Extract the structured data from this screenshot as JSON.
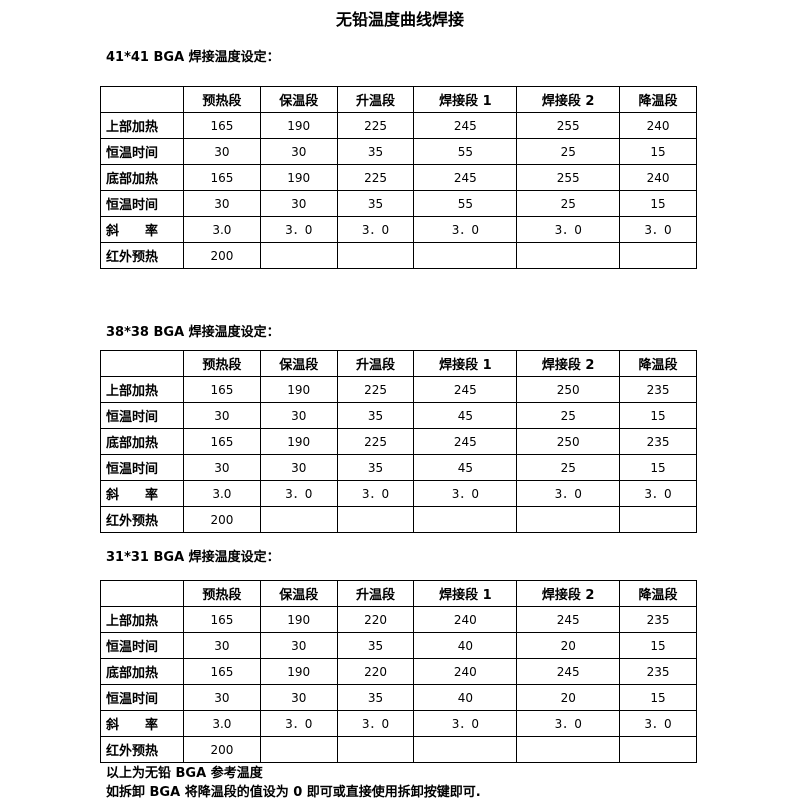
{
  "title": "无铅温度曲线焊接",
  "columns": [
    "",
    "预热段",
    "保温段",
    "升温段",
    "焊接段 1",
    "焊接段 2",
    "降温段"
  ],
  "tables": [
    {
      "heading": "41*41  BGA 焊接温度设定：",
      "rows": [
        {
          "label": "上部加热",
          "values": [
            "165",
            "190",
            "225",
            "245",
            "255",
            "240"
          ]
        },
        {
          "label": "恒温时间",
          "values": [
            "30",
            "30",
            "35",
            "55",
            "25",
            "15"
          ]
        },
        {
          "label": "底部加热",
          "values": [
            "165",
            "190",
            "225",
            "245",
            "255",
            "240"
          ]
        },
        {
          "label": "恒温时间",
          "values": [
            "30",
            "30",
            "35",
            "55",
            "25",
            "15"
          ]
        },
        {
          "label": "斜　　率",
          "values": [
            "3.0",
            "3．0",
            "3．0",
            "3．0",
            "3．0",
            "3．0"
          ]
        },
        {
          "label": "红外预热",
          "values": [
            "200",
            "",
            "",
            "",
            "",
            ""
          ]
        }
      ]
    },
    {
      "heading": "38*38  BGA 焊接温度设定：",
      "rows": [
        {
          "label": "上部加热",
          "values": [
            "165",
            "190",
            "225",
            "245",
            "250",
            "235"
          ]
        },
        {
          "label": "恒温时间",
          "values": [
            "30",
            "30",
            "35",
            "45",
            "25",
            "15"
          ]
        },
        {
          "label": "底部加热",
          "values": [
            "165",
            "190",
            "225",
            "245",
            "250",
            "235"
          ]
        },
        {
          "label": "恒温时间",
          "values": [
            "30",
            "30",
            "35",
            "45",
            "25",
            "15"
          ]
        },
        {
          "label": "斜　　率",
          "values": [
            "3.0",
            "3．0",
            "3．0",
            "3．0",
            "3．0",
            "3．0"
          ]
        },
        {
          "label": "红外预热",
          "values": [
            "200",
            "",
            "",
            "",
            "",
            ""
          ]
        }
      ]
    },
    {
      "heading": "31*31  BGA 焊接温度设定：",
      "rows": [
        {
          "label": "上部加热",
          "values": [
            "165",
            "190",
            "220",
            "240",
            "245",
            "235"
          ]
        },
        {
          "label": "恒温时间",
          "values": [
            "30",
            "30",
            "35",
            "40",
            "20",
            "15"
          ]
        },
        {
          "label": "底部加热",
          "values": [
            "165",
            "190",
            "220",
            "240",
            "245",
            "235"
          ]
        },
        {
          "label": "恒温时间",
          "values": [
            "30",
            "30",
            "35",
            "40",
            "20",
            "15"
          ]
        },
        {
          "label": "斜　　率",
          "values": [
            "3.0",
            "3．0",
            "3．0",
            "3．0",
            "3．0",
            "3．0"
          ]
        },
        {
          "label": "红外预热",
          "values": [
            "200",
            "",
            "",
            "",
            "",
            ""
          ]
        }
      ]
    }
  ],
  "notes": [
    "以上为无铅 BGA 参考温度",
    "如拆卸 BGA 将降温段的值设为 0 即可或直接使用拆卸按键即可."
  ]
}
